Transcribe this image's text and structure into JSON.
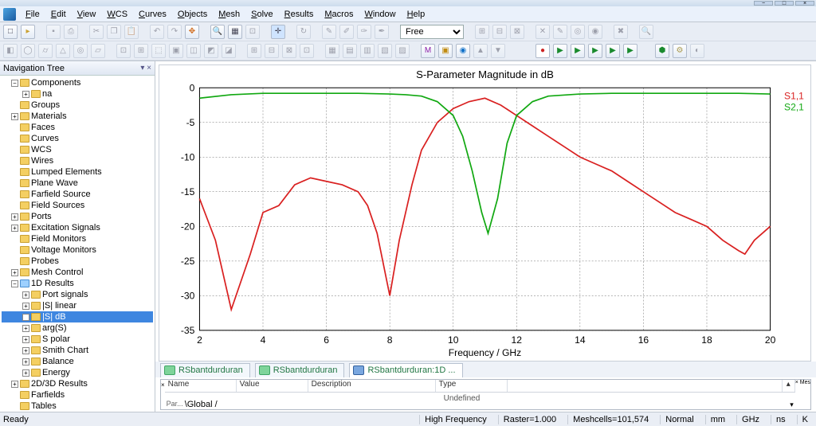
{
  "window": {
    "min": "−",
    "max": "□",
    "close": "×"
  },
  "menu": [
    "File",
    "Edit",
    "View",
    "WCS",
    "Curves",
    "Objects",
    "Mesh",
    "Solve",
    "Results",
    "Macros",
    "Window",
    "Help"
  ],
  "menu_accel": [
    0,
    0,
    0,
    null,
    null,
    null,
    null,
    null,
    null,
    null,
    null,
    null
  ],
  "combo_value": "Free",
  "nav": {
    "title": "Navigation Tree",
    "items": [
      {
        "l": 0,
        "exp": "−",
        "label": "Components",
        "ic": "y"
      },
      {
        "l": 1,
        "exp": "+",
        "label": "na",
        "ic": "y"
      },
      {
        "l": 0,
        "exp": "",
        "label": "Groups",
        "ic": "y"
      },
      {
        "l": 0,
        "exp": "+",
        "label": "Materials",
        "ic": "y"
      },
      {
        "l": 0,
        "exp": "",
        "label": "Faces",
        "ic": "y"
      },
      {
        "l": 0,
        "exp": "",
        "label": "Curves",
        "ic": "y"
      },
      {
        "l": 0,
        "exp": "",
        "label": "WCS",
        "ic": "y"
      },
      {
        "l": 0,
        "exp": "",
        "label": "Wires",
        "ic": "y"
      },
      {
        "l": 0,
        "exp": "",
        "label": "Lumped Elements",
        "ic": "y"
      },
      {
        "l": 0,
        "exp": "",
        "label": "Plane Wave",
        "ic": "y"
      },
      {
        "l": 0,
        "exp": "",
        "label": "Farfield Source",
        "ic": "y"
      },
      {
        "l": 0,
        "exp": "",
        "label": "Field Sources",
        "ic": "y"
      },
      {
        "l": 0,
        "exp": "+",
        "label": "Ports",
        "ic": "y"
      },
      {
        "l": 0,
        "exp": "+",
        "label": "Excitation Signals",
        "ic": "y"
      },
      {
        "l": 0,
        "exp": "",
        "label": "Field Monitors",
        "ic": "y"
      },
      {
        "l": 0,
        "exp": "",
        "label": "Voltage Monitors",
        "ic": "y"
      },
      {
        "l": 0,
        "exp": "",
        "label": "Probes",
        "ic": "y"
      },
      {
        "l": 0,
        "exp": "+",
        "label": "Mesh Control",
        "ic": "y"
      },
      {
        "l": 0,
        "exp": "−",
        "label": "1D Results",
        "ic": "b"
      },
      {
        "l": 1,
        "exp": "+",
        "label": "Port signals",
        "ic": "y"
      },
      {
        "l": 1,
        "exp": "+",
        "label": "|S| linear",
        "ic": "y"
      },
      {
        "l": 1,
        "exp": "+",
        "label": "|S| dB",
        "ic": "y",
        "sel": true
      },
      {
        "l": 1,
        "exp": "+",
        "label": "arg(S)",
        "ic": "y"
      },
      {
        "l": 1,
        "exp": "+",
        "label": "S polar",
        "ic": "y"
      },
      {
        "l": 1,
        "exp": "+",
        "label": "Smith Chart",
        "ic": "y"
      },
      {
        "l": 1,
        "exp": "+",
        "label": "Balance",
        "ic": "y"
      },
      {
        "l": 1,
        "exp": "+",
        "label": "Energy",
        "ic": "y"
      },
      {
        "l": 0,
        "exp": "+",
        "label": "2D/3D Results",
        "ic": "y"
      },
      {
        "l": 0,
        "exp": "",
        "label": "Farfields",
        "ic": "y"
      },
      {
        "l": 0,
        "exp": "",
        "label": "Tables",
        "ic": "y"
      }
    ]
  },
  "chart": {
    "title": "S-Parameter Magnitude in dB",
    "xlabel": "Frequency / GHz",
    "xlim": [
      2,
      20
    ],
    "ylim": [
      -35,
      0
    ],
    "xtick_step": 2,
    "ytick_step": 5,
    "series": [
      {
        "name": "S1,1",
        "color": "#d92020",
        "x": [
          2,
          2.5,
          3,
          3.6,
          4,
          4.5,
          5,
          5.5,
          6,
          6.5,
          7,
          7.3,
          7.6,
          8,
          8.3,
          8.7,
          9,
          9.5,
          10,
          10.5,
          11,
          11.5,
          12,
          12.5,
          13,
          13.5,
          14,
          14.5,
          15,
          15.5,
          16,
          16.5,
          17,
          17.5,
          18,
          18.5,
          19,
          19.2,
          19.5,
          20
        ],
        "y": [
          -16,
          -22,
          -32,
          -24,
          -18,
          -17,
          -14,
          -13,
          -13.5,
          -14,
          -15,
          -17,
          -21,
          -30,
          -22,
          -14,
          -9,
          -5,
          -3,
          -2,
          -1.5,
          -2.5,
          -4,
          -5.5,
          -7,
          -8.5,
          -10,
          -11,
          -12,
          -13.5,
          -15,
          -16.5,
          -18,
          -19,
          -20,
          -22,
          -23.5,
          -24,
          -22,
          -20
        ]
      },
      {
        "name": "S2,1",
        "color": "#11a811",
        "x": [
          2,
          3,
          4,
          5,
          6,
          7,
          8,
          8.5,
          9,
          9.5,
          10,
          10.3,
          10.6,
          10.9,
          11.1,
          11.4,
          11.7,
          12,
          12.5,
          13,
          14,
          15,
          16,
          17,
          18,
          19,
          20
        ],
        "y": [
          -1.5,
          -1,
          -0.8,
          -0.8,
          -0.8,
          -0.8,
          -0.9,
          -1,
          -1.2,
          -2,
          -4,
          -7,
          -12,
          -18,
          -21,
          -16,
          -8,
          -4,
          -2,
          -1.2,
          -0.9,
          -0.8,
          -0.8,
          -0.8,
          -0.8,
          -0.8,
          -0.9
        ]
      }
    ],
    "title_fontsize": 13,
    "axis_fontsize": 12,
    "grid_color": "#707070",
    "axis_color": "#000000",
    "bg": "#ffffff"
  },
  "doctabs": [
    {
      "label": "RSbantdurduran",
      "style": "green"
    },
    {
      "label": "RSbantdurduran",
      "style": "green"
    },
    {
      "label": "RSbantdurduran:1D ...",
      "style": "alt",
      "active": true
    }
  ],
  "propgrid": {
    "cols": [
      "Name",
      "Value",
      "Description",
      "Type"
    ],
    "sidelabel": "Par...",
    "pending": "Undefined",
    "tab": "Global"
  },
  "status": {
    "left": "Ready",
    "right": [
      "High Frequency",
      "Raster=1.000",
      "Meshcells=101,574",
      "Normal",
      "mm",
      "GHz",
      "ns",
      "K"
    ]
  }
}
